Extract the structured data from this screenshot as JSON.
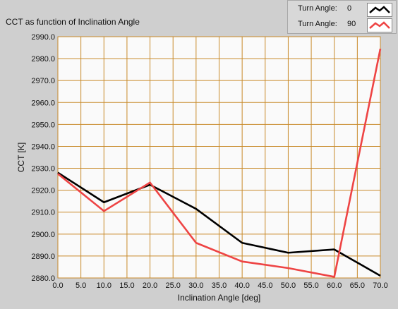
{
  "chart_data": {
    "type": "line",
    "title": "CCT as function of Inclination Angle",
    "xlabel": "Inclination Angle [deg]",
    "ylabel": "CCT [K]",
    "xlim": [
      0,
      70
    ],
    "ylim": [
      2880,
      2990
    ],
    "x_ticks": [
      "0.0",
      "5.0",
      "10.0",
      "15.0",
      "20.0",
      "25.0",
      "30.0",
      "35.0",
      "40.0",
      "45.0",
      "50.0",
      "55.0",
      "60.0",
      "65.0",
      "70.0"
    ],
    "y_ticks": [
      "2880.0",
      "2890.0",
      "2900.0",
      "2910.0",
      "2920.0",
      "2930.0",
      "2940.0",
      "2950.0",
      "2960.0",
      "2970.0",
      "2980.0",
      "2990.0"
    ],
    "grid": true,
    "legend_position": "top-right",
    "x": [
      0,
      10,
      20,
      30,
      40,
      50,
      60,
      70
    ],
    "series": [
      {
        "label": "Turn Angle:",
        "value": "0",
        "color": "#000000",
        "values": [
          2928,
          2914.5,
          2922.5,
          2911.5,
          2896,
          2891.5,
          2893,
          2881
        ]
      },
      {
        "label": "Turn Angle:",
        "value": "90",
        "color": "#ee4444",
        "values": [
          2927.5,
          2910.5,
          2923.5,
          2896,
          2887.5,
          2884.5,
          2880.5,
          2984.5
        ]
      }
    ]
  },
  "colors": {
    "plot_bg": "#fafafa",
    "grid": "#c88a2a",
    "frame": "#888888"
  }
}
